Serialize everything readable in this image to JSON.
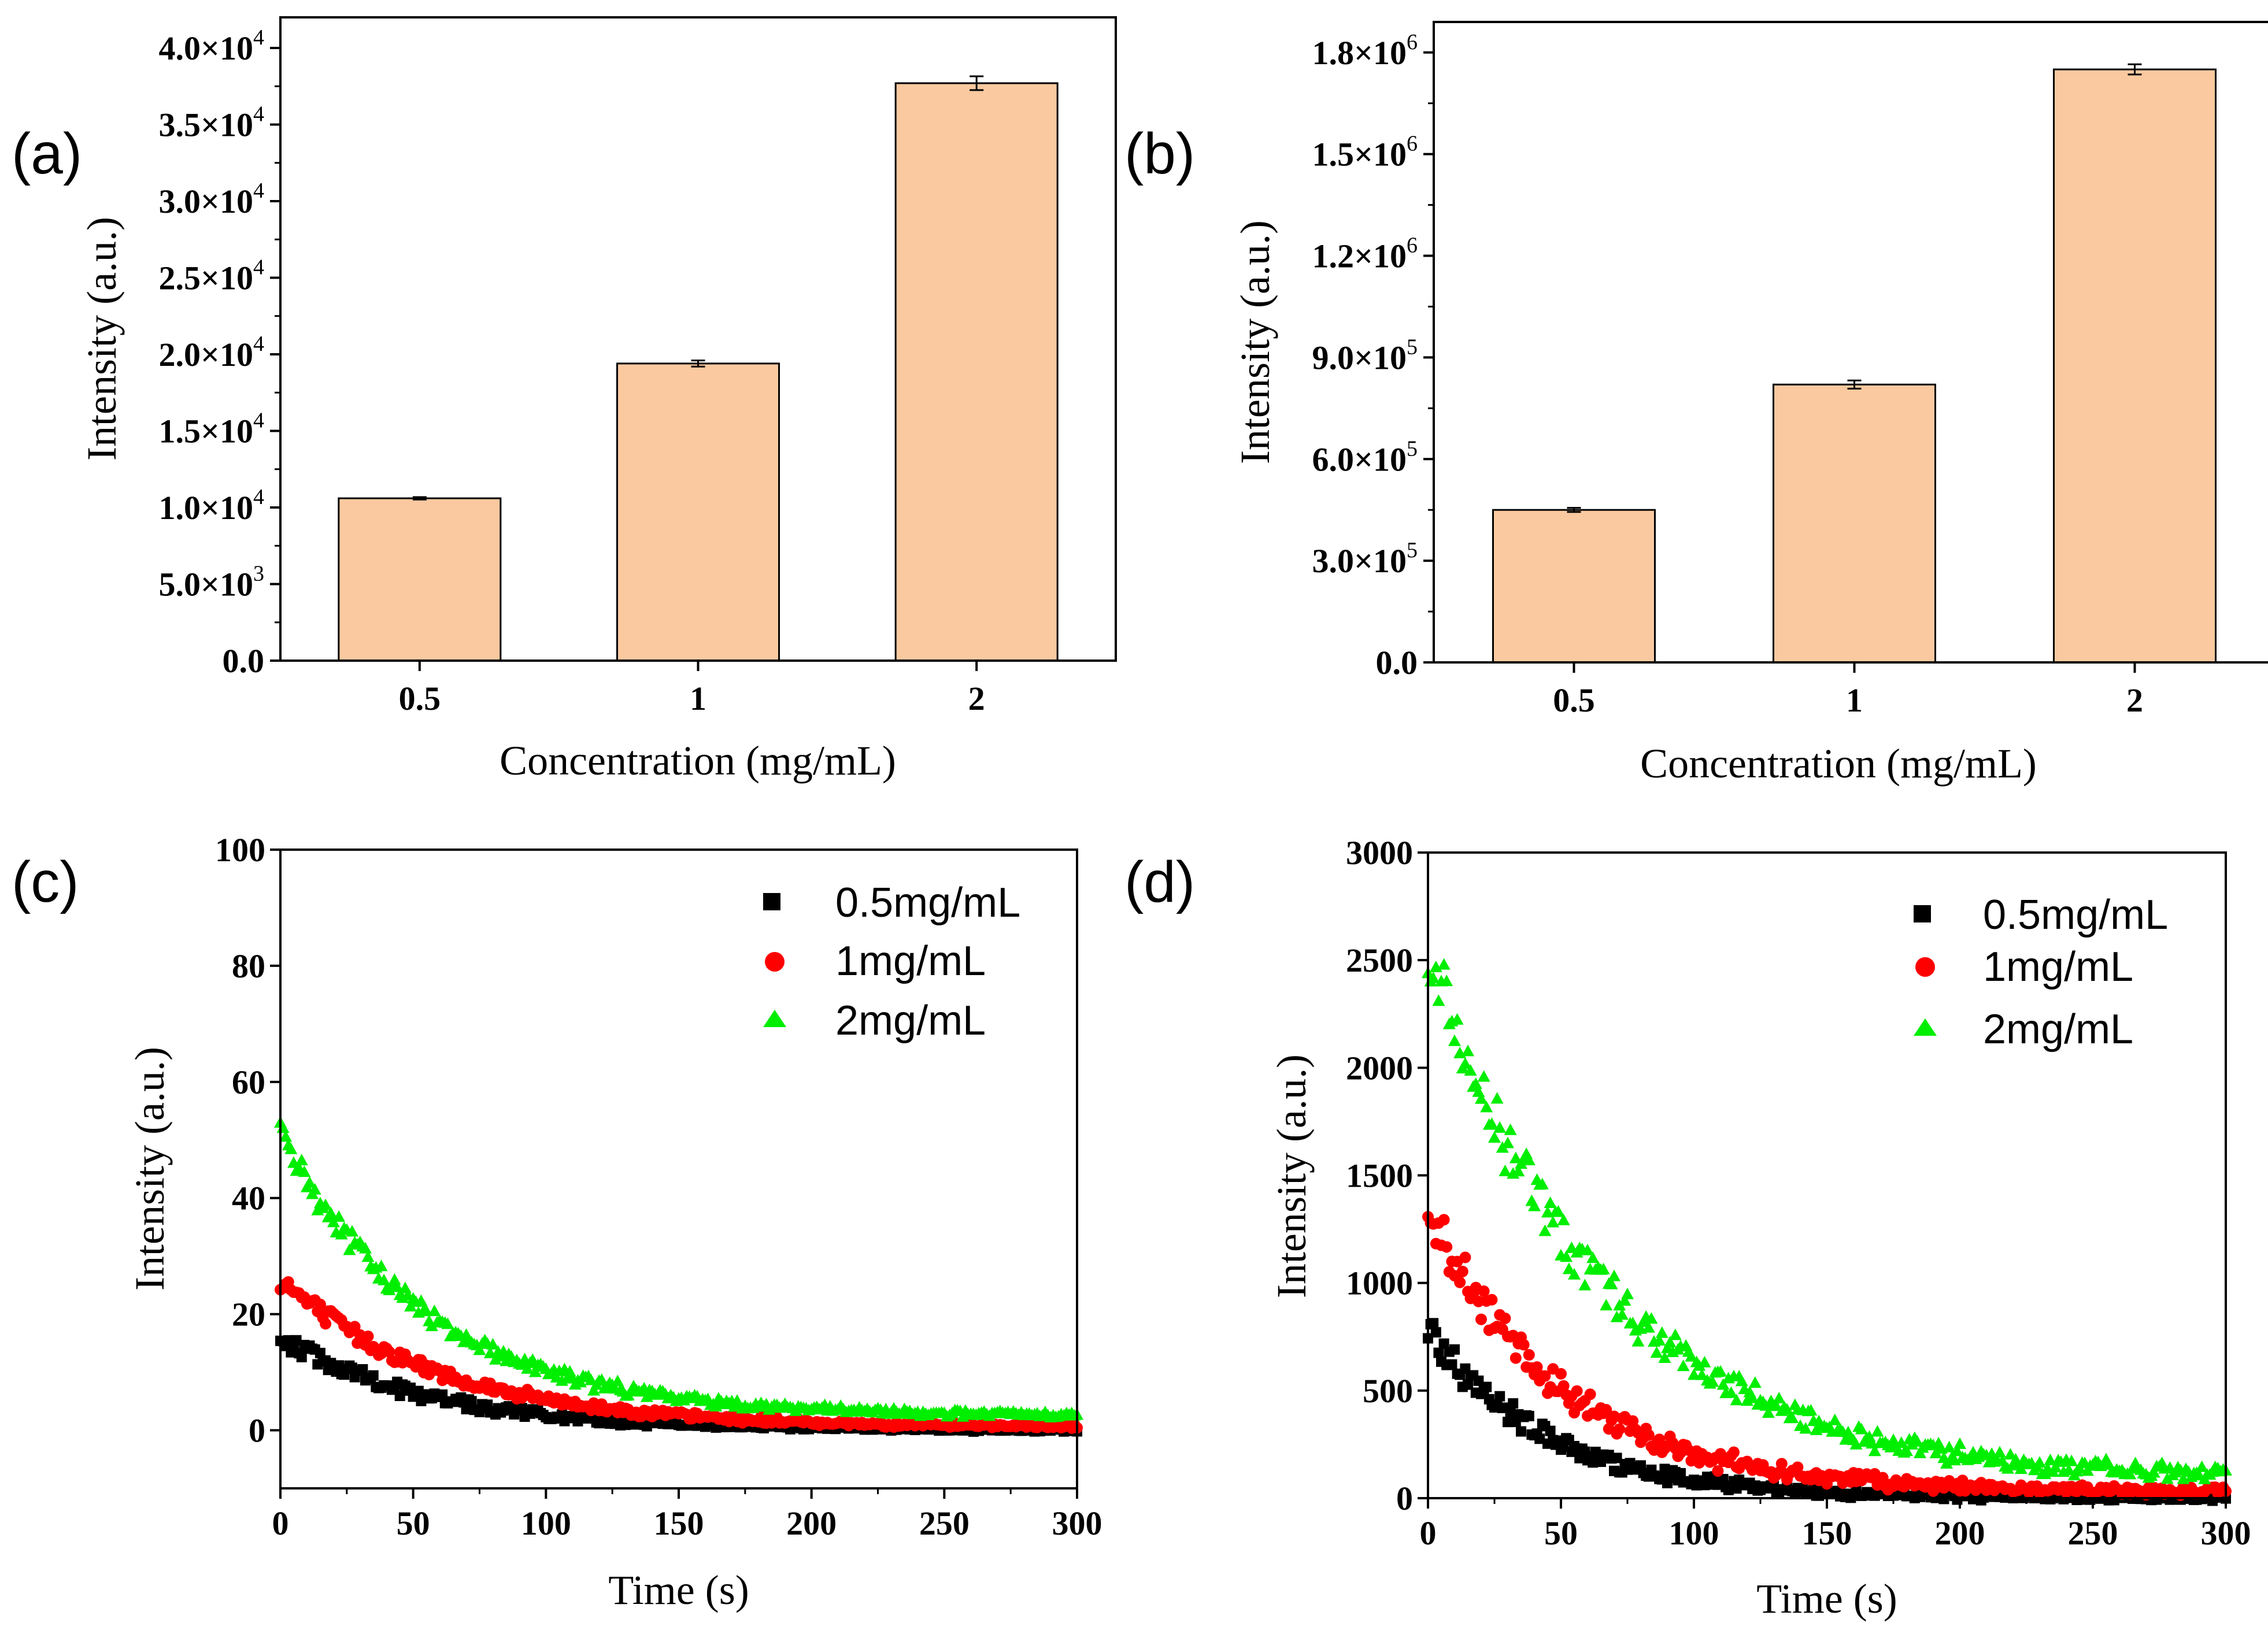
{
  "chart_data": [
    {
      "id": "a",
      "panel_label": "(a)",
      "type": "bar",
      "title": "",
      "xlabel": "Concentration (mg/mL)",
      "ylabel": "Intensity (a.u.)",
      "categories": [
        "0.5",
        "1",
        "2"
      ],
      "values": [
        10600,
        19400,
        37700
      ],
      "errors": [
        80,
        200,
        450
      ],
      "ylim": [
        0,
        42000
      ],
      "yticks": [
        0,
        5000,
        10000,
        15000,
        20000,
        25000,
        30000,
        35000,
        40000
      ],
      "ytick_labels": [
        {
          "mant": "0.0",
          "exp": ""
        },
        {
          "mant": "5.0×10",
          "exp": "3"
        },
        {
          "mant": "1.0×10",
          "exp": "4"
        },
        {
          "mant": "1.5×10",
          "exp": "4"
        },
        {
          "mant": "2.0×10",
          "exp": "4"
        },
        {
          "mant": "2.5×10",
          "exp": "4"
        },
        {
          "mant": "3.0×10",
          "exp": "4"
        },
        {
          "mant": "3.5×10",
          "exp": "4"
        },
        {
          "mant": "4.0×10",
          "exp": "4"
        }
      ],
      "bar_color": "#fac9a0",
      "grid": false
    },
    {
      "id": "b",
      "panel_label": "(b)",
      "type": "bar",
      "title": "",
      "xlabel": "Concentration (mg/mL)",
      "ylabel": "Intensity (a.u.)",
      "categories": [
        "0.5",
        "1",
        "2"
      ],
      "values": [
        450000,
        820000,
        1750000
      ],
      "errors": [
        6000,
        12000,
        15000
      ],
      "ylim": [
        0,
        1890000
      ],
      "yticks": [
        0,
        300000,
        600000,
        900000,
        1200000,
        1500000,
        1800000
      ],
      "ytick_labels": [
        {
          "mant": "0.0",
          "exp": ""
        },
        {
          "mant": "3.0×10",
          "exp": "5"
        },
        {
          "mant": "6.0×10",
          "exp": "5"
        },
        {
          "mant": "9.0×10",
          "exp": "5"
        },
        {
          "mant": "1.2×10",
          "exp": "6"
        },
        {
          "mant": "1.5×10",
          "exp": "6"
        },
        {
          "mant": "1.8×10",
          "exp": "6"
        }
      ],
      "bar_color": "#fac9a0",
      "grid": false
    },
    {
      "id": "c",
      "panel_label": "(c)",
      "type": "scatter",
      "title": "",
      "xlabel": "Time (s)",
      "ylabel": "Intensity (a.u.)",
      "xlim": [
        0,
        300
      ],
      "ylim": [
        -10,
        100
      ],
      "xticks": [
        0,
        50,
        100,
        150,
        200,
        250,
        300
      ],
      "yticks": [
        0,
        20,
        40,
        60,
        80,
        100
      ],
      "legend_position": "top-right",
      "series": [
        {
          "name": "0.5mg/mL",
          "color": "#000000",
          "marker": "square",
          "start": 16,
          "end": 0,
          "tau": 55,
          "noise": 1.6
        },
        {
          "name": "1mg/mL",
          "color": "#ff0000",
          "marker": "circle",
          "start": 26,
          "end": 0.5,
          "tau": 60,
          "noise": 1.8
        },
        {
          "name": "2mg/mL",
          "color": "#00ee00",
          "marker": "triangle",
          "start": 51,
          "end": 2.5,
          "tau": 55,
          "noise": 2.5
        }
      ]
    },
    {
      "id": "d",
      "panel_label": "(d)",
      "type": "scatter",
      "title": "",
      "xlabel": "Time (s)",
      "ylabel": "Intensity (a.u.)",
      "xlim": [
        0,
        300
      ],
      "ylim": [
        0,
        3000
      ],
      "xticks": [
        0,
        50,
        100,
        150,
        200,
        250,
        300
      ],
      "yticks": [
        0,
        500,
        1000,
        1500,
        2000,
        2500,
        3000
      ],
      "legend_position": "top-right",
      "series": [
        {
          "name": "0.5mg/mL",
          "color": "#000000",
          "marker": "square",
          "start": 780,
          "end": 0,
          "tau": 45,
          "noise": 70
        },
        {
          "name": "1mg/mL",
          "color": "#ff0000",
          "marker": "circle",
          "start": 1350,
          "end": 30,
          "tau": 50,
          "noise": 110
        },
        {
          "name": "2mg/mL",
          "color": "#00ee00",
          "marker": "triangle",
          "start": 2550,
          "end": 90,
          "tau": 65,
          "noise": 150
        }
      ]
    }
  ]
}
